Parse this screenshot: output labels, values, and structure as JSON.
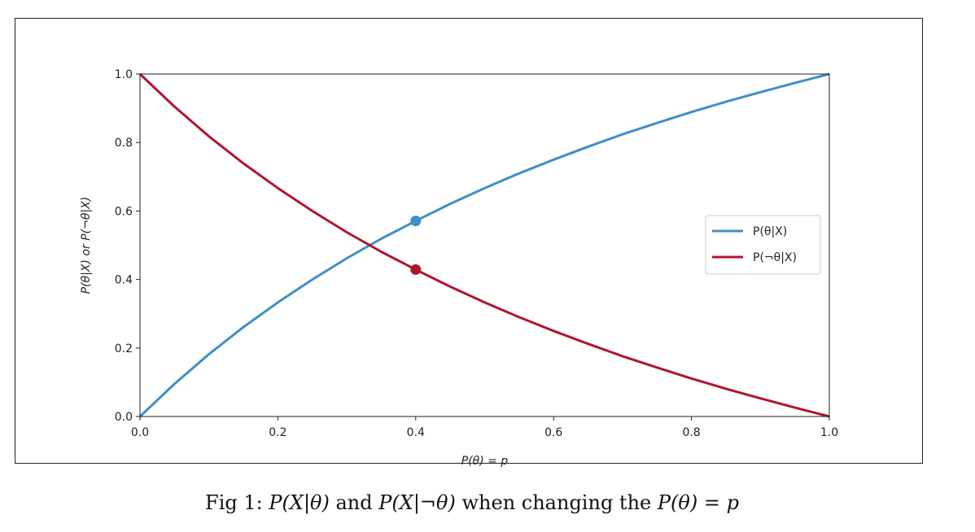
{
  "chart_data": {
    "type": "line",
    "xlabel": "P(θ) = p",
    "ylabel": "P(θ|X) or P(¬θ|X)",
    "xlim": [
      0.0,
      1.0
    ],
    "ylim": [
      0.0,
      1.0
    ],
    "x_ticks": [
      "0.0",
      "0.2",
      "0.4",
      "0.6",
      "0.8",
      "1.0"
    ],
    "y_ticks": [
      "0.0",
      "0.2",
      "0.4",
      "0.6",
      "0.8",
      "1.0"
    ],
    "grid": false,
    "legend_position": "right",
    "x": [
      0.0,
      0.05,
      0.1,
      0.15,
      0.2,
      0.25,
      0.3,
      0.35,
      0.4,
      0.45,
      0.5,
      0.55,
      0.6,
      0.65,
      0.7,
      0.75,
      0.8,
      0.85,
      0.9,
      0.95,
      1.0
    ],
    "series": [
      {
        "name": "P(θ|X)",
        "color": "#3f8fc5",
        "values": [
          0.0,
          0.095,
          0.182,
          0.261,
          0.333,
          0.4,
          0.462,
          0.519,
          0.571,
          0.621,
          0.667,
          0.71,
          0.75,
          0.788,
          0.824,
          0.857,
          0.889,
          0.919,
          0.947,
          0.974,
          1.0
        ]
      },
      {
        "name": "P(¬θ|X)",
        "color": "#b0152e",
        "values": [
          1.0,
          0.905,
          0.818,
          0.739,
          0.667,
          0.6,
          0.538,
          0.481,
          0.429,
          0.379,
          0.333,
          0.29,
          0.25,
          0.212,
          0.176,
          0.143,
          0.111,
          0.081,
          0.053,
          0.026,
          0.0
        ]
      }
    ],
    "markers": [
      {
        "series": "P(θ|X)",
        "x": 0.4,
        "y": 0.571,
        "color": "#3f8fc5"
      },
      {
        "series": "P(¬θ|X)",
        "x": 0.4,
        "y": 0.429,
        "color": "#b0152e"
      }
    ]
  },
  "caption": {
    "prefix": "Fig 1: ",
    "term1": "P(X|θ)",
    "and": " and ",
    "term2": "P(X|¬θ)",
    "middle": " when changing the ",
    "term3": "P(θ) = p"
  }
}
